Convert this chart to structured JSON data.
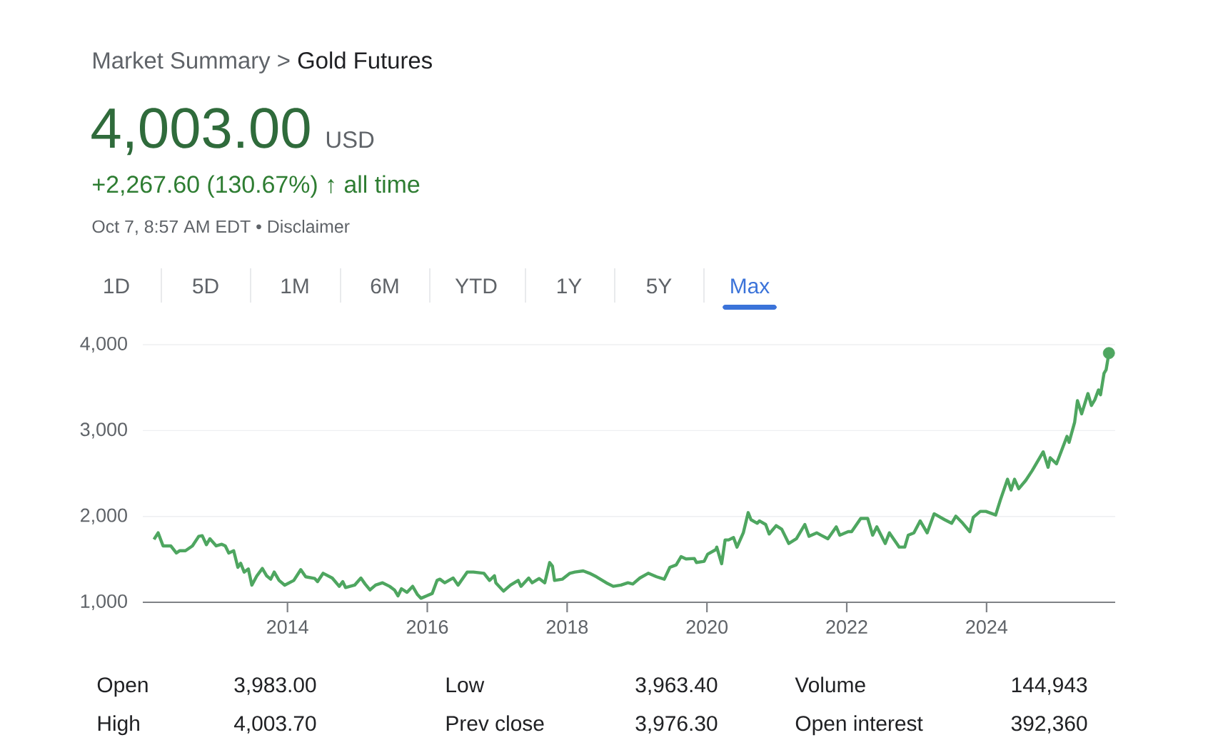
{
  "chart_data": {
    "type": "line",
    "title": "Market Summary >",
    "subtitle": "Gold Futures",
    "annotations": [
      "4,003.00",
      "USD",
      "+2,267.60 (130.67%) ↑ all time",
      "Oct 7, 8:57 AM EDT • Disclaimer",
      "1D",
      "5D",
      "1M",
      "6M",
      "YTD",
      "1Y",
      "5Y",
      "Max",
      "Open",
      "3,983.00",
      "Low",
      "3,963.40",
      "Volume",
      "144,943",
      "High",
      "4,003.70",
      "Prev close",
      "3,976.30",
      "Open interest",
      "392,360"
    ],
    "x": [
      2012.09,
      2012.15,
      2012.22,
      2012.33,
      2012.41,
      2012.46,
      2012.54,
      2012.64,
      2012.73,
      2012.78,
      2012.84,
      2012.89,
      2012.98,
      2013.06,
      2013.11,
      2013.16,
      2013.23,
      2013.29,
      2013.33,
      2013.38,
      2013.44,
      2013.49,
      2013.56,
      2013.64,
      2013.7,
      2013.76,
      2013.81,
      2013.88,
      2013.96,
      2014.09,
      2014.19,
      2014.26,
      2014.39,
      2014.43,
      2014.51,
      2014.64,
      2014.74,
      2014.79,
      2014.83,
      2014.96,
      2015.05,
      2015.11,
      2015.18,
      2015.26,
      2015.36,
      2015.46,
      2015.53,
      2015.58,
      2015.63,
      2015.71,
      2015.79,
      2015.86,
      2015.91,
      2015.99,
      2016.07,
      2016.14,
      2016.18,
      2016.25,
      2016.37,
      2016.44,
      2016.57,
      2016.66,
      2016.81,
      2016.89,
      2016.96,
      2016.98,
      2017.09,
      2017.19,
      2017.3,
      2017.34,
      2017.45,
      2017.5,
      2017.6,
      2017.68,
      2017.75,
      2017.79,
      2017.82,
      2017.93,
      2018.04,
      2018.11,
      2018.23,
      2018.32,
      2018.42,
      2018.56,
      2018.66,
      2018.77,
      2018.87,
      2018.94,
      2019.04,
      2019.16,
      2019.28,
      2019.39,
      2019.47,
      2019.56,
      2019.63,
      2019.7,
      2019.82,
      2019.85,
      2019.96,
      2020.01,
      2020.13,
      2020.14,
      2020.21,
      2020.26,
      2020.31,
      2020.38,
      2020.43,
      2020.52,
      2020.59,
      2020.63,
      2020.72,
      2020.75,
      2020.84,
      2020.89,
      2020.99,
      2021.07,
      2021.17,
      2021.28,
      2021.4,
      2021.46,
      2021.57,
      2021.63,
      2021.73,
      2021.85,
      2021.9,
      2022.02,
      2022.07,
      2022.2,
      2022.3,
      2022.37,
      2022.43,
      2022.55,
      2022.61,
      2022.75,
      2022.83,
      2022.88,
      2022.96,
      2023.05,
      2023.15,
      2023.25,
      2023.4,
      2023.5,
      2023.56,
      2023.66,
      2023.76,
      2023.81,
      2023.91,
      2023.99,
      2024.13,
      2024.2,
      2024.3,
      2024.35,
      2024.4,
      2024.46,
      2024.56,
      2024.65,
      2024.75,
      2024.81,
      2024.88,
      2024.91,
      2025.0,
      2025.15,
      2025.18,
      2025.26,
      2025.3,
      2025.36,
      2025.45,
      2025.5,
      2025.55,
      2025.6,
      2025.63,
      2025.68,
      2025.71,
      2025.75
    ],
    "series": [
      {
        "color": "#4ea660",
        "values": [
          1732,
          1809,
          1657,
          1657,
          1574,
          1601,
          1601,
          1657,
          1768,
          1776,
          1671,
          1740,
          1657,
          1676,
          1657,
          1574,
          1601,
          1407,
          1455,
          1352,
          1388,
          1200,
          1305,
          1394,
          1310,
          1269,
          1352,
          1255,
          1200,
          1255,
          1380,
          1297,
          1277,
          1241,
          1338,
          1283,
          1186,
          1241,
          1172,
          1200,
          1283,
          1213,
          1144,
          1200,
          1227,
          1186,
          1144,
          1075,
          1158,
          1116,
          1186,
          1089,
          1047,
          1075,
          1103,
          1255,
          1269,
          1227,
          1283,
          1200,
          1352,
          1352,
          1338,
          1255,
          1310,
          1227,
          1130,
          1200,
          1255,
          1186,
          1283,
          1227,
          1277,
          1227,
          1463,
          1421,
          1255,
          1269,
          1338,
          1352,
          1366,
          1338,
          1297,
          1227,
          1186,
          1200,
          1227,
          1213,
          1283,
          1338,
          1297,
          1269,
          1407,
          1435,
          1532,
          1505,
          1510,
          1463,
          1477,
          1560,
          1615,
          1643,
          1449,
          1726,
          1726,
          1754,
          1643,
          1809,
          2045,
          1962,
          1920,
          1948,
          1906,
          1796,
          1893,
          1851,
          1685,
          1740,
          1906,
          1768,
          1809,
          1782,
          1740,
          1879,
          1782,
          1823,
          1823,
          1976,
          1976,
          1782,
          1879,
          1685,
          1809,
          1643,
          1643,
          1782,
          1809,
          1948,
          1809,
          2031,
          1962,
          1920,
          2003,
          1920,
          1823,
          1990,
          2059,
          2059,
          2017,
          2198,
          2433,
          2308,
          2433,
          2322,
          2419,
          2530,
          2669,
          2752,
          2572,
          2683,
          2613,
          2932,
          2863,
          3098,
          3348,
          3195,
          3431,
          3292,
          3362,
          3473,
          3417,
          3667,
          3708,
          3902
        ]
      },
      {
        "type": "scatter",
        "color": "#4ea660",
        "x": [
          2025.75
        ],
        "values": [
          3902
        ]
      }
    ],
    "xlim": [
      2011.93,
      2025.84
    ],
    "xticks": [
      2014,
      2016,
      2018,
      2020,
      2022,
      2024
    ],
    "ylim": [
      1000,
      4000
    ],
    "yticks": [
      {
        "value": 1000,
        "label": "1,000"
      },
      {
        "value": 2000,
        "label": "2,000"
      },
      {
        "value": 3000,
        "label": "3,000"
      },
      {
        "value": 4000,
        "label": "4,000"
      }
    ],
    "grid": "y"
  }
}
